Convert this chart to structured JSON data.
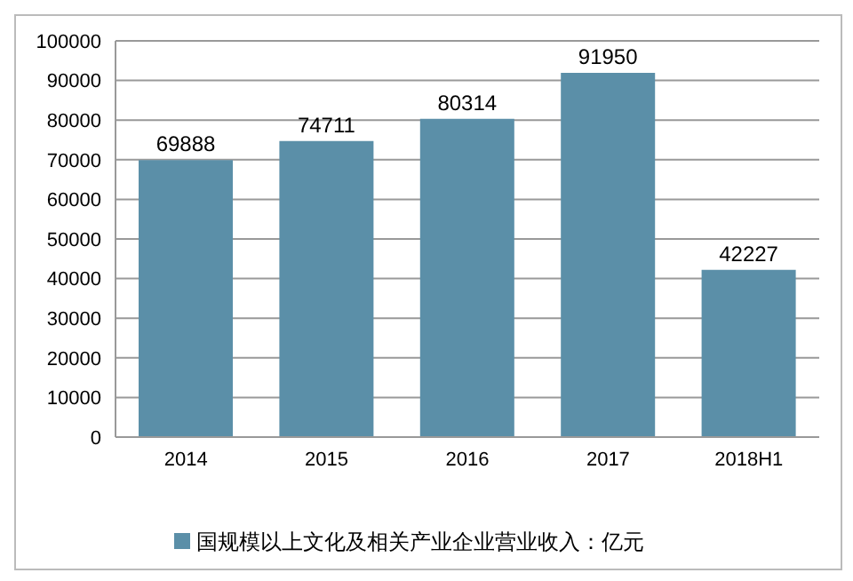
{
  "chart_data": {
    "type": "bar",
    "categories": [
      "2014",
      "2015",
      "2016",
      "2017",
      "2018H1"
    ],
    "series": [
      {
        "name": "国规模以上文化及相关产业企业营业收入：亿元",
        "color": "#5b8fa8",
        "values": [
          69888,
          74711,
          80314,
          91950,
          42227
        ]
      }
    ],
    "ylim": [
      0,
      100000
    ],
    "yticks": [
      0,
      10000,
      20000,
      30000,
      40000,
      50000,
      60000,
      70000,
      80000,
      90000,
      100000
    ],
    "grid": "y",
    "legend": "bottom",
    "data_labels": true
  }
}
